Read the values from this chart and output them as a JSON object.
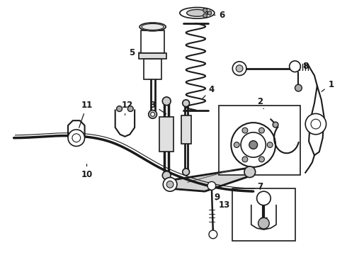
{
  "background_color": "#ffffff",
  "line_color": "#1a1a1a",
  "label_color": "#000000",
  "fig_width": 4.9,
  "fig_height": 3.6,
  "dpi": 100,
  "label_fontsize": 8.5,
  "label_fontweight": "bold"
}
